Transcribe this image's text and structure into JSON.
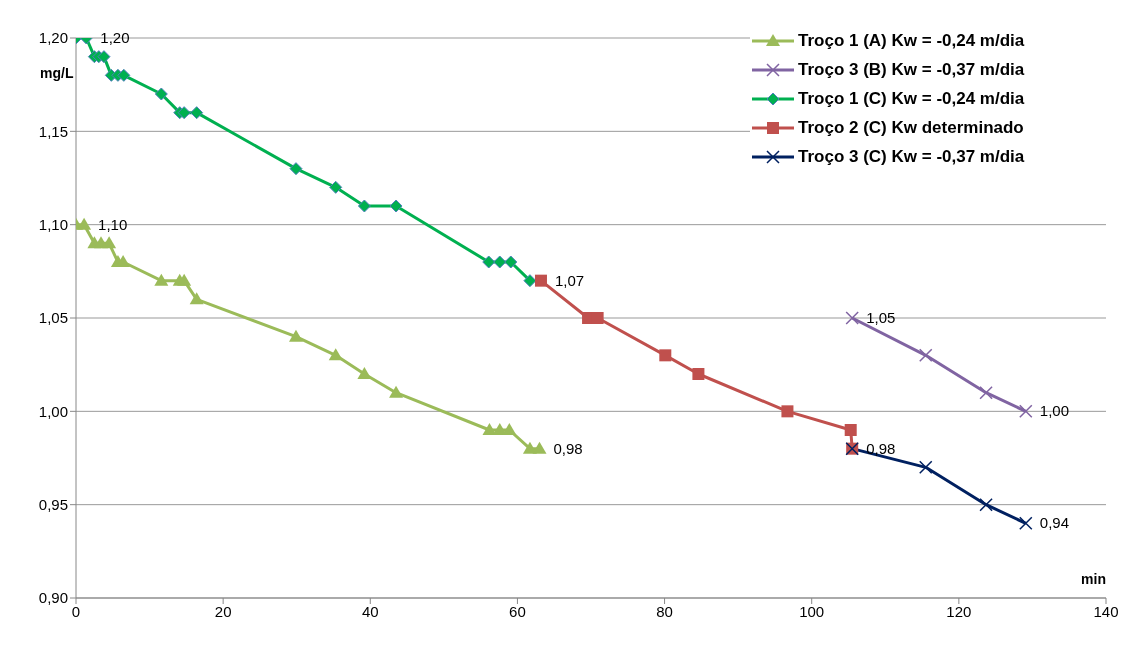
{
  "chart_data": {
    "type": "line",
    "xlabel": "min",
    "ylabel": "mg/L",
    "xlim": [
      0,
      140
    ],
    "xticks": [
      0,
      20,
      40,
      60,
      80,
      100,
      120,
      140
    ],
    "ylim": [
      0.9,
      1.2
    ],
    "yticks": [
      {
        "value": 0.9,
        "label": "0,90"
      },
      {
        "value": 0.95,
        "label": "0,95"
      },
      {
        "value": 1.0,
        "label": "1,00"
      },
      {
        "value": 1.05,
        "label": "1,05"
      },
      {
        "value": 1.1,
        "label": "1,10"
      },
      {
        "value": 1.15,
        "label": "1,15"
      },
      {
        "value": 1.2,
        "label": "1,20"
      }
    ],
    "grid": "y",
    "legend": "top right",
    "series": [
      {
        "name": "Troço 1 (A) Kw = -0,24 m/dia",
        "color": "#9bbb59",
        "marker": "triangle",
        "x": [
          0,
          1.1,
          2.5,
          3.4,
          4.5,
          5.7,
          6.4,
          11.6,
          14.1,
          14.7,
          16.4,
          29.9,
          35.3,
          39.2,
          43.5,
          56.2,
          57.6,
          58.9,
          61.7,
          63.0
        ],
        "values": [
          1.1,
          1.1,
          1.09,
          1.09,
          1.09,
          1.08,
          1.08,
          1.07,
          1.07,
          1.07,
          1.06,
          1.04,
          1.03,
          1.02,
          1.01,
          0.99,
          0.99,
          0.99,
          0.98,
          0.98
        ],
        "value_labels": [
          null,
          "1,10",
          null,
          null,
          null,
          null,
          null,
          null,
          null,
          null,
          null,
          null,
          null,
          null,
          null,
          null,
          null,
          null,
          null,
          "0,98"
        ]
      },
      {
        "name": "Troço 3 (B) Kw = -0,37 m/dia",
        "color": "#8064a2",
        "marker": "cross",
        "x": [
          105.5,
          115.5,
          123.7,
          129.1
        ],
        "values": [
          1.05,
          1.03,
          1.01,
          1.0
        ],
        "value_labels": [
          "1,05",
          null,
          null,
          "1,00"
        ]
      },
      {
        "name": "Troço 1 (C) Kw = -0,24 m/dia",
        "color": "#00b050",
        "marker": "diamond",
        "x": [
          0,
          1.4,
          2.5,
          3.1,
          3.8,
          4.8,
          5.7,
          6.5,
          11.6,
          14.1,
          14.7,
          16.4,
          29.9,
          35.3,
          39.2,
          43.5,
          56.1,
          57.6,
          59.1,
          61.7
        ],
        "values": [
          1.2,
          1.2,
          1.19,
          1.19,
          1.19,
          1.18,
          1.18,
          1.18,
          1.17,
          1.16,
          1.16,
          1.16,
          1.13,
          1.12,
          1.11,
          1.11,
          1.08,
          1.08,
          1.08,
          1.07
        ],
        "value_labels": [
          null,
          "1,20",
          null,
          null,
          null,
          null,
          null,
          null,
          null,
          null,
          null,
          null,
          null,
          null,
          null,
          null,
          null,
          null,
          null,
          null
        ]
      },
      {
        "name": "Troço 2 (C) Kw determinado",
        "color": "#c0504d",
        "marker": "square",
        "x": [
          63.2,
          69.6,
          70.9,
          80.1,
          84.6,
          96.7,
          105.3,
          105.5
        ],
        "values": [
          1.07,
          1.05,
          1.05,
          1.03,
          1.02,
          1.0,
          0.99,
          0.98
        ],
        "value_labels": [
          "1,07",
          null,
          null,
          null,
          null,
          null,
          null,
          null
        ]
      },
      {
        "name": "Troço 3 (C) Kw = -0,37 m/dia",
        "color": "#002060",
        "marker": "cross",
        "x": [
          105.5,
          115.5,
          123.7,
          129.1
        ],
        "values": [
          0.98,
          0.97,
          0.95,
          0.94
        ],
        "value_labels": [
          "0,98",
          null,
          null,
          "0,94"
        ]
      }
    ]
  }
}
